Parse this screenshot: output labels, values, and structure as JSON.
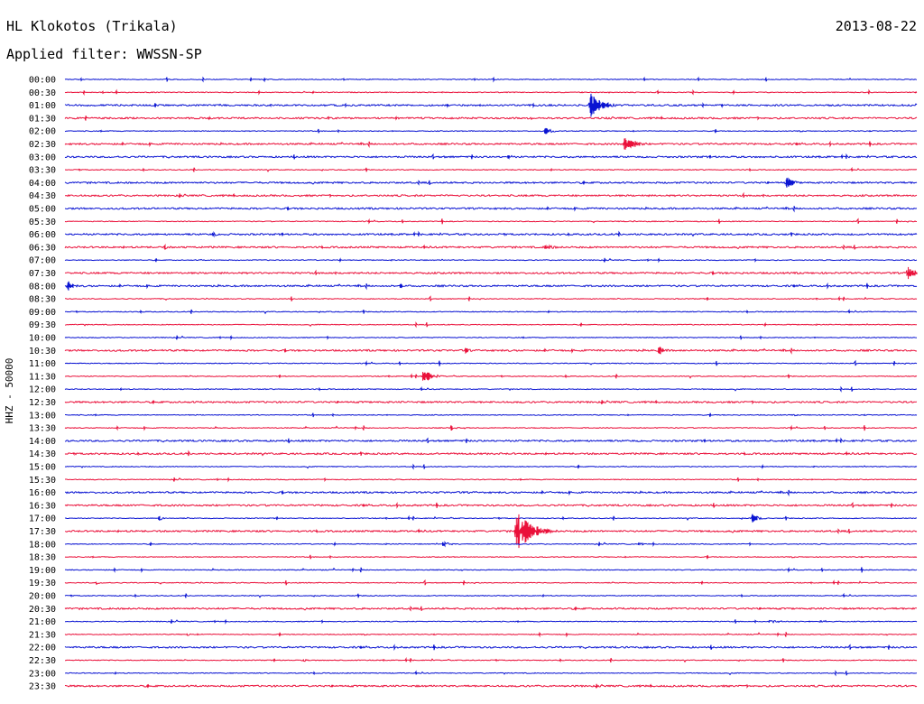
{
  "header": {
    "station": "HL Klokotos (Trikala)",
    "date": "2013-08-22",
    "filter_text": "Applied filter: WWSSN-SP"
  },
  "channel_label": "HHZ - 50000",
  "colors": {
    "trace_a": "#0a14d2",
    "trace_b": "#ea103a"
  },
  "chart_data": {
    "type": "line",
    "title": "HL Klokotos (Trikala)",
    "subtitle": "Applied filter: WWSSN-SP",
    "ylabel": "HHZ - 50000",
    "xlabel": "",
    "minutes_per_line": 30,
    "x_range_minutes": [
      0,
      30
    ],
    "row_labels": [
      "00:00",
      "00:30",
      "01:00",
      "01:30",
      "02:00",
      "02:30",
      "03:00",
      "03:30",
      "04:00",
      "04:30",
      "05:00",
      "05:30",
      "06:00",
      "06:30",
      "07:00",
      "07:30",
      "08:00",
      "08:30",
      "09:00",
      "09:30",
      "10:00",
      "10:30",
      "11:00",
      "11:30",
      "12:00",
      "12:30",
      "13:00",
      "13:30",
      "14:00",
      "14:30",
      "15:00",
      "15:30",
      "16:00",
      "16:30",
      "17:00",
      "17:30",
      "18:00",
      "18:30",
      "19:00",
      "19:30",
      "20:00",
      "20:30",
      "21:00",
      "21:30",
      "22:00",
      "22:30",
      "23:00",
      "23:30"
    ],
    "row_colors": [
      "blue",
      "red"
    ],
    "noise_level": [
      1,
      1,
      2,
      2,
      1,
      2,
      2,
      1,
      2,
      2,
      2,
      1,
      2,
      2,
      1,
      2,
      2,
      1,
      1,
      1,
      1,
      2,
      1,
      1,
      1,
      2,
      1,
      1,
      2,
      2,
      1,
      1,
      2,
      2,
      1,
      2,
      1,
      1,
      1,
      1,
      1,
      2,
      1,
      1,
      2,
      1,
      1,
      2
    ],
    "events": [
      {
        "row": 2,
        "minute": 18.5,
        "amplitude": 14,
        "duration": 1.2
      },
      {
        "row": 4,
        "minute": 16.9,
        "amplitude": 4,
        "duration": 0.8
      },
      {
        "row": 5,
        "minute": 19.7,
        "amplitude": 10,
        "duration": 1.1
      },
      {
        "row": 6,
        "minute": 15.6,
        "amplitude": 3,
        "duration": 0.5
      },
      {
        "row": 8,
        "minute": 25.4,
        "amplitude": 6,
        "duration": 0.9
      },
      {
        "row": 12,
        "minute": 5.2,
        "amplitude": 3,
        "duration": 0.5
      },
      {
        "row": 13,
        "minute": 3.5,
        "amplitude": 3,
        "duration": 0.3
      },
      {
        "row": 13,
        "minute": 16.9,
        "amplitude": 3,
        "duration": 1.4
      },
      {
        "row": 15,
        "minute": 29.7,
        "amplitude": 11,
        "duration": 0.6
      },
      {
        "row": 16,
        "minute": 0.1,
        "amplitude": 6,
        "duration": 0.6
      },
      {
        "row": 16,
        "minute": 11.8,
        "amplitude": 3,
        "duration": 0.5
      },
      {
        "row": 21,
        "minute": 14.1,
        "amplitude": 3,
        "duration": 0.6
      },
      {
        "row": 21,
        "minute": 20.9,
        "amplitude": 5,
        "duration": 0.7
      },
      {
        "row": 23,
        "minute": 12.6,
        "amplitude": 8,
        "duration": 0.9
      },
      {
        "row": 27,
        "minute": 13.6,
        "amplitude": 3,
        "duration": 0.5
      },
      {
        "row": 34,
        "minute": 3.3,
        "amplitude": 3,
        "duration": 0.5
      },
      {
        "row": 34,
        "minute": 24.2,
        "amplitude": 5,
        "duration": 0.7
      },
      {
        "row": 35,
        "minute": 15.9,
        "amplitude": 24,
        "duration": 1.5
      },
      {
        "row": 36,
        "minute": 13.3,
        "amplitude": 3,
        "duration": 0.8
      },
      {
        "row": 36,
        "minute": 20.2,
        "amplitude": 2,
        "duration": 0.5
      },
      {
        "row": 39,
        "minute": 1.1,
        "amplitude": 2,
        "duration": 0.4
      },
      {
        "row": 42,
        "minute": 24.8,
        "amplitude": 2,
        "duration": 1.5
      },
      {
        "row": 42,
        "minute": 26.6,
        "amplitude": 2,
        "duration": 0.9
      },
      {
        "row": 43,
        "minute": 4.3,
        "amplitude": 2,
        "duration": 0.4
      },
      {
        "row": 45,
        "minute": 8.4,
        "amplitude": 2,
        "duration": 0.4
      }
    ]
  }
}
